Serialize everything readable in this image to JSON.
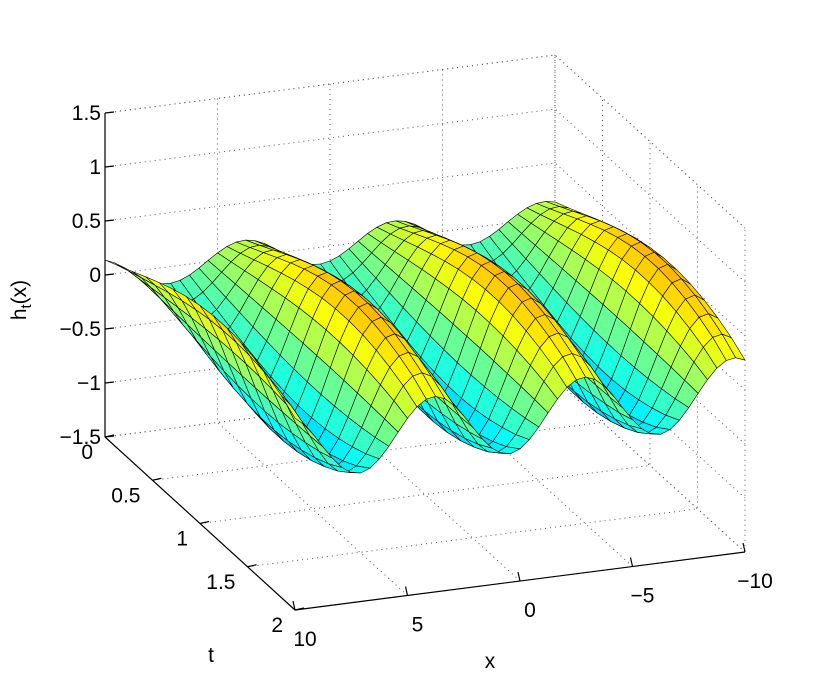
{
  "chart_data": {
    "type": "surface",
    "function": "h_t(x)",
    "zlabel": "h_t(x)",
    "zlabel_main": "h",
    "zlabel_sub": "t",
    "zlabel_tail": "(x)",
    "xlabel": "x",
    "ylabel": "t",
    "xlim": [
      -10,
      10
    ],
    "ylim": [
      0,
      2
    ],
    "zlim": [
      -1.5,
      1.5
    ],
    "x_ticks": [
      "10",
      "5",
      "0",
      "−5",
      "−10"
    ],
    "x_tick_values": [
      10,
      5,
      0,
      -5,
      -10
    ],
    "t_ticks": [
      "0",
      "0.5",
      "1",
      "1.5",
      "2"
    ],
    "t_tick_values": [
      0,
      0.5,
      1,
      1.5,
      2
    ],
    "z_ticks": [
      "1.5",
      "1",
      "0.5",
      "0",
      "−0.5",
      "−1",
      "−1.5"
    ],
    "z_tick_values": [
      1.5,
      1,
      0.5,
      0,
      -0.5,
      -1,
      -1.5
    ],
    "grid": true,
    "colormap": "jet",
    "surface_description_values": {
      "x_samples": 48,
      "t_samples": 14,
      "peak": 1.0,
      "trough": -1.0
    }
  }
}
